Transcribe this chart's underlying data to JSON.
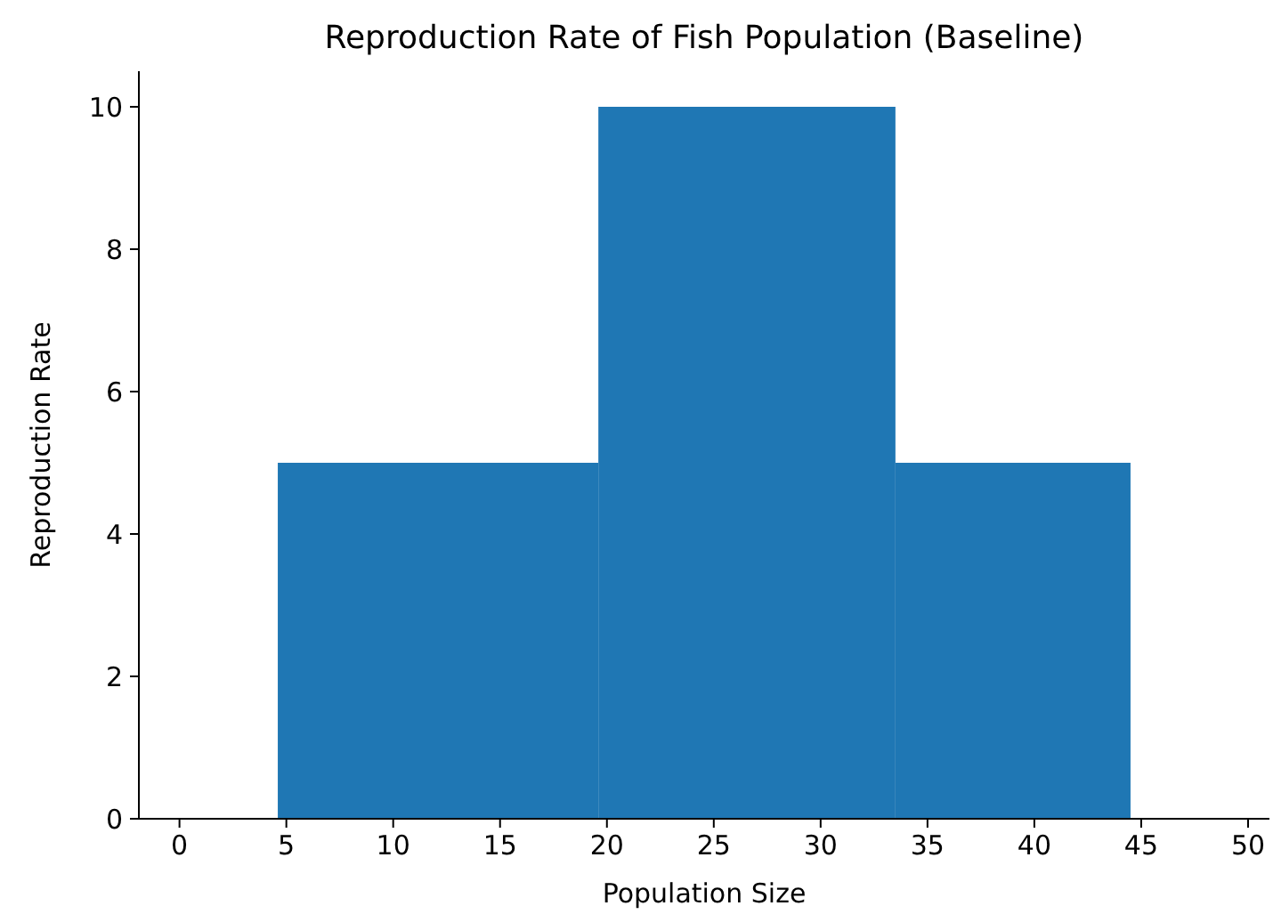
{
  "chart_data": {
    "type": "histogram",
    "title": "Reproduction Rate of Fish Population (Baseline)",
    "xlabel": "Population Size",
    "ylabel": "Reproduction Rate",
    "bins": [
      4.6,
      19.6,
      33.5,
      44.5
    ],
    "values": [
      5,
      10,
      5
    ],
    "color": "#1f77b4",
    "xlim": [
      -1.9,
      51
    ],
    "ylim": [
      0,
      10.5
    ],
    "xticks": [
      0,
      5,
      10,
      15,
      20,
      25,
      30,
      35,
      40,
      45,
      50
    ],
    "yticks": [
      0,
      2,
      4,
      6,
      8,
      10
    ],
    "grid": false
  }
}
